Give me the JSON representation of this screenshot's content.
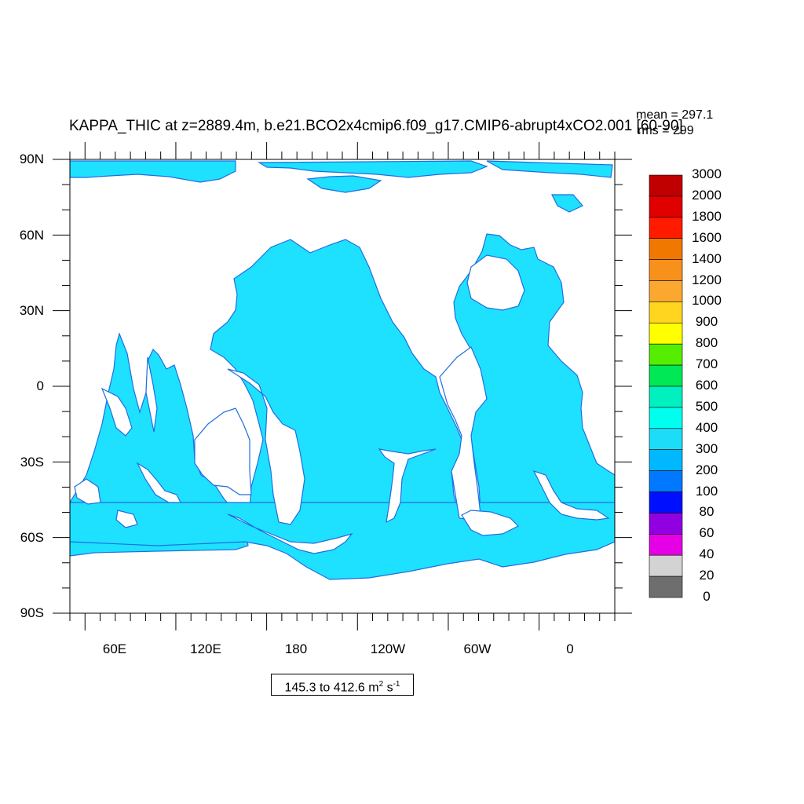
{
  "title": "KAPPA_THIC at z=2889.4m, b.e21.BCO2x4cmip6.f09_g17.CMIP6-abrupt4xCO2.001 [60-90]",
  "stats": {
    "mean": "mean = 297.1",
    "rms": "rms = 299"
  },
  "y_axis": {
    "labels": [
      "90N",
      "60N",
      "30N",
      "0",
      "30S",
      "60S",
      "90S"
    ]
  },
  "x_axis": {
    "labels": [
      "60E",
      "120E",
      "180",
      "120W",
      "60W",
      "0"
    ]
  },
  "range_label": {
    "text": "145.3 to 412.6 m",
    "unit1": "2",
    "mid": " s",
    "unit2": "-1"
  },
  "colorbar": {
    "levels": [
      "3000",
      "2000",
      "1800",
      "1600",
      "1400",
      "1200",
      "1000",
      "900",
      "800",
      "700",
      "600",
      "500",
      "400",
      "300",
      "200",
      "100",
      "80",
      "60",
      "40",
      "20",
      "0"
    ],
    "colors": [
      "#c00000",
      "#e00000",
      "#ff1a00",
      "#f07800",
      "#f8901c",
      "#fba830",
      "#ffd520",
      "#ffff00",
      "#55ee00",
      "#00e855",
      "#00f0c0",
      "#00ffee",
      "#1cdcf8",
      "#00b8ff",
      "#0078ff",
      "#0010ff",
      "#9000e0",
      "#e600e6",
      "#d3d3d3",
      "#6e6e6e"
    ]
  },
  "map": {
    "ocean_color": "#1ee1ff",
    "land_color": "#ffffff",
    "coast_color": "#1e6ee0"
  }
}
